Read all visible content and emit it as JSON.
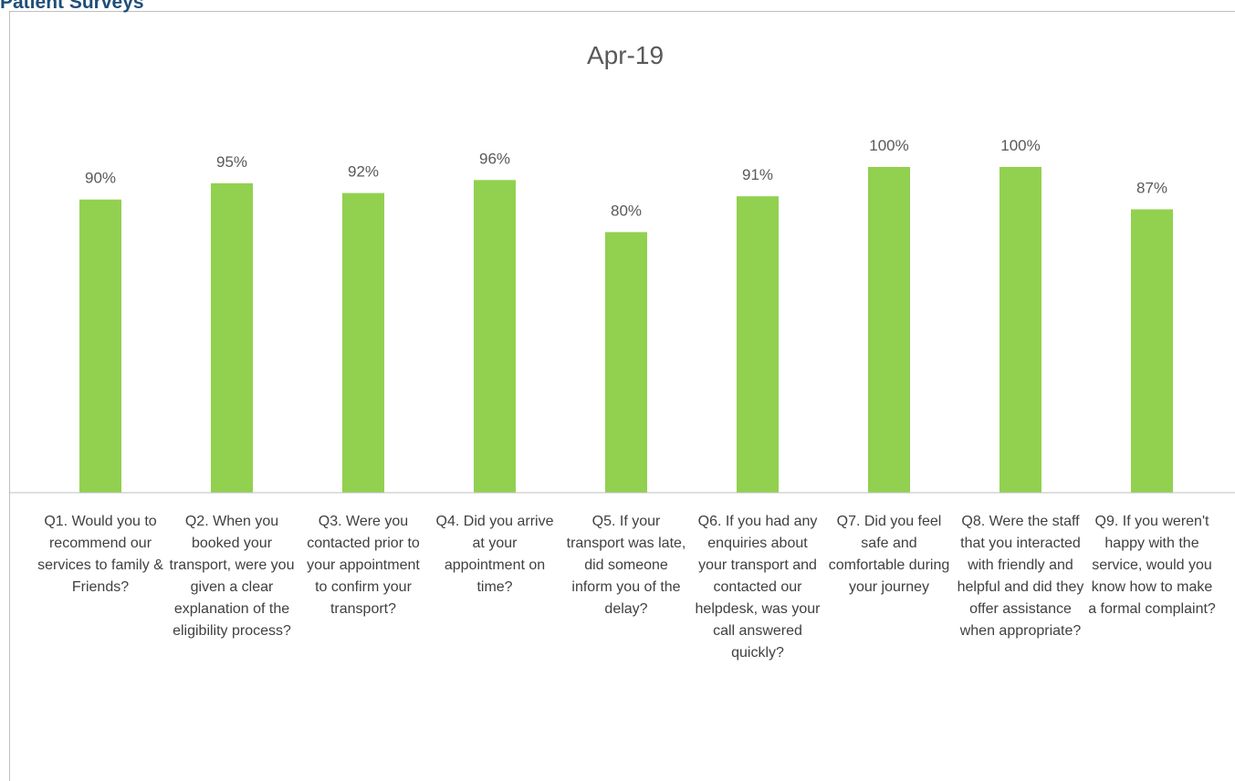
{
  "header": {
    "title": "Patient Surveys"
  },
  "chart_data": {
    "type": "bar",
    "title": "Apr-19",
    "categories": [
      "Q1. Would you to recommend our services to family & Friends?",
      "Q2. When you booked your transport, were you given a clear explanation of the eligibility process?",
      "Q3. Were you contacted prior to your appointment to confirm your transport?",
      "Q4. Did you arrive at your appointment on time?",
      "Q5. If your transport was late, did someone inform you of the delay?",
      "Q6. If you had any enquiries about your transport and contacted our helpdesk, was your call answered quickly?",
      "Q7. Did you feel safe and comfortable during your journey",
      "Q8. Were the staff that you interacted with friendly and helpful and did they offer assistance when appropriate?",
      "Q9. If you weren't happy with the service, would you know how to make a formal complaint?"
    ],
    "values": [
      90,
      95,
      92,
      96,
      80,
      91,
      100,
      100,
      87
    ],
    "value_labels": [
      "90%",
      "95%",
      "92%",
      "96%",
      "80%",
      "91%",
      "100%",
      "100%",
      "87%"
    ],
    "color": "#92d050",
    "ylim": [
      0,
      100
    ],
    "grid": false
  }
}
